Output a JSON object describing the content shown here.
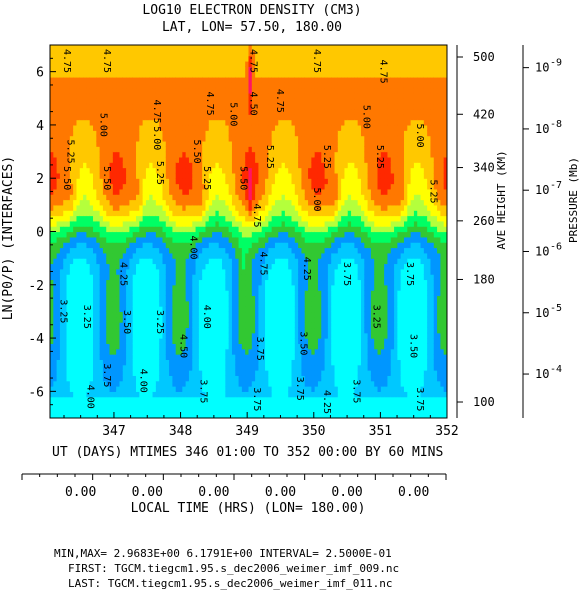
{
  "chart_data": {
    "type": "heatmap",
    "title_line1": "LOG10 ELECTRON DENSITY (CM3)",
    "title_line2": "LAT, LON=  57.50,     180.00",
    "ylabel": "LN(P0/P) (INTERFACES)",
    "xlabel": "UT (DAYS) MTIMES 346 01:00 TO 352 00:00 BY    60 MINS",
    "x_range": [
      346.04,
      352.0
    ],
    "y_range": [
      -7,
      7
    ],
    "x_ticks": [
      "347",
      "348",
      "349",
      "350",
      "351",
      "352"
    ],
    "y_ticks": [
      "6",
      "4",
      "2",
      "0",
      "-2",
      "-4",
      "-6"
    ],
    "height_axis": {
      "label": "AVE HEIGHT (KM)",
      "ticks": [
        {
          "label": "500",
          "lnp": 6.55
        },
        {
          "label": "420",
          "lnp": 4.4
        },
        {
          "label": "340",
          "lnp": 2.4
        },
        {
          "label": "260",
          "lnp": 0.4
        },
        {
          "label": "180",
          "lnp": -1.8
        },
        {
          "label": "100",
          "lnp": -6.4
        }
      ]
    },
    "pressure_axis": {
      "label": "PRESSURE (Mb)",
      "ticks": [
        {
          "label": "10",
          "exp": "-9",
          "lnp": 6.15
        },
        {
          "label": "10",
          "exp": "-8",
          "lnp": 3.85
        },
        {
          "label": "10",
          "exp": "-7",
          "lnp": 1.55
        },
        {
          "label": "10",
          "exp": "-6",
          "lnp": -0.75
        },
        {
          "label": "10",
          "exp": "-5",
          "lnp": -3.05
        },
        {
          "label": "10",
          "exp": "-4",
          "lnp": -5.35
        }
      ]
    },
    "local_time_axis": {
      "label": "LOCAL TIME (HRS) (LON= 180.00)",
      "ticks": [
        "0.00",
        "0.00",
        "0.00",
        "0.00",
        "0.00",
        "0.00"
      ]
    },
    "min_max_line": "MIN,MAX=  2.9683E+00  6.1791E+00 INTERVAL=  2.5000E-01",
    "first_file": "FIRST: TGCM.tiegcm1.95.s_dec2006_weimer_imf_009.nc",
    "last_file": "LAST:  TGCM.tiegcm1.95.s_dec2006_weimer_imf_011.nc",
    "value_min": 2.9683,
    "value_max": 6.1791,
    "interval": 0.25,
    "contour_labels": [
      {
        "text": "4.75",
        "x": 346.25,
        "y": 6.4
      },
      {
        "text": "4.75",
        "x": 346.85,
        "y": 6.4
      },
      {
        "text": "4.75",
        "x": 347.6,
        "y": 4.5
      },
      {
        "text": "5.00",
        "x": 346.8,
        "y": 4.0
      },
      {
        "text": "5.00",
        "x": 347.6,
        "y": 3.5
      },
      {
        "text": "5.25",
        "x": 346.3,
        "y": 3.0
      },
      {
        "text": "5.50",
        "x": 346.85,
        "y": 2.0
      },
      {
        "text": "5.50",
        "x": 346.25,
        "y": 2.0
      },
      {
        "text": "5.25",
        "x": 347.65,
        "y": 2.2
      },
      {
        "text": "5.25",
        "x": 348.35,
        "y": 2.0
      },
      {
        "text": "5.50",
        "x": 348.2,
        "y": 3.0
      },
      {
        "text": "4.75",
        "x": 348.4,
        "y": 4.8
      },
      {
        "text": "4.50",
        "x": 349.05,
        "y": 4.8
      },
      {
        "text": "4.75",
        "x": 349.45,
        "y": 4.9
      },
      {
        "text": "4.75",
        "x": 349.05,
        "y": 6.4
      },
      {
        "text": "5.00",
        "x": 348.75,
        "y": 4.4
      },
      {
        "text": "5.25",
        "x": 349.3,
        "y": 2.8
      },
      {
        "text": "5.50",
        "x": 348.9,
        "y": 2.0
      },
      {
        "text": "4.75",
        "x": 349.1,
        "y": 0.6
      },
      {
        "text": "5.25",
        "x": 350.15,
        "y": 2.8
      },
      {
        "text": "5.00",
        "x": 350.0,
        "y": 1.2
      },
      {
        "text": "4.75",
        "x": 350.0,
        "y": 6.4
      },
      {
        "text": "4.75",
        "x": 351.0,
        "y": 6.0
      },
      {
        "text": "5.00",
        "x": 350.75,
        "y": 4.3
      },
      {
        "text": "5.25",
        "x": 350.95,
        "y": 2.8
      },
      {
        "text": "5.00",
        "x": 351.55,
        "y": 3.6
      },
      {
        "text": "5.25",
        "x": 351.75,
        "y": 1.5
      },
      {
        "text": "4.00",
        "x": 348.15,
        "y": -0.6
      },
      {
        "text": "4.25",
        "x": 347.1,
        "y": -1.6
      },
      {
        "text": "4.75",
        "x": 349.2,
        "y": -1.2
      },
      {
        "text": "4.25",
        "x": 349.85,
        "y": -1.4
      },
      {
        "text": "3.75",
        "x": 350.45,
        "y": -1.6
      },
      {
        "text": "3.75",
        "x": 351.4,
        "y": -1.6
      },
      {
        "text": "3.25",
        "x": 346.2,
        "y": -3.0
      },
      {
        "text": "3.25",
        "x": 346.55,
        "y": -3.2
      },
      {
        "text": "3.50",
        "x": 347.15,
        "y": -3.4
      },
      {
        "text": "3.25",
        "x": 347.65,
        "y": -3.4
      },
      {
        "text": "4.50",
        "x": 348.0,
        "y": -4.3
      },
      {
        "text": "4.00",
        "x": 348.35,
        "y": -3.2
      },
      {
        "text": "3.75",
        "x": 349.15,
        "y": -4.4
      },
      {
        "text": "3.50",
        "x": 349.8,
        "y": -4.2
      },
      {
        "text": "3.25",
        "x": 350.9,
        "y": -3.2
      },
      {
        "text": "3.50",
        "x": 351.45,
        "y": -4.3
      },
      {
        "text": "4.00",
        "x": 346.6,
        "y": -6.2
      },
      {
        "text": "3.75",
        "x": 346.85,
        "y": -5.4
      },
      {
        "text": "4.00",
        "x": 347.4,
        "y": -5.6
      },
      {
        "text": "3.75",
        "x": 348.3,
        "y": -6.0
      },
      {
        "text": "3.75",
        "x": 349.1,
        "y": -6.3
      },
      {
        "text": "3.75",
        "x": 349.75,
        "y": -5.9
      },
      {
        "text": "3.75",
        "x": 350.6,
        "y": -6.0
      },
      {
        "text": "4.25",
        "x": 350.15,
        "y": -6.4
      },
      {
        "text": "3.75",
        "x": 351.55,
        "y": -6.3
      }
    ],
    "colors": [
      "#00ffff",
      "#00c8ff",
      "#0096ff",
      "#32c832",
      "#00ff64",
      "#b4ff3c",
      "#ffff00",
      "#ffc800",
      "#ff7800",
      "#ff2800",
      "#ff1464",
      "#ff00c8",
      "#ff00ff"
    ]
  }
}
